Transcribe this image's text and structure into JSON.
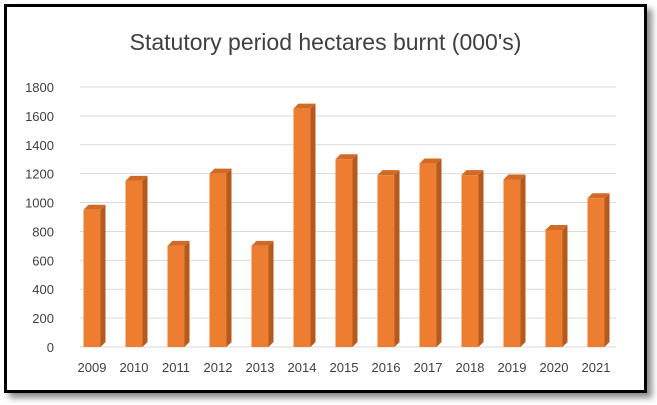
{
  "colors": {
    "bar_front": "#ED7D31",
    "bar_side": "#B55A1E",
    "bar_top": "#D06A25",
    "grid": "#D9D9D9",
    "text": "#404040"
  },
  "chart_data": {
    "type": "bar",
    "title": "Statutory period hectares burnt (000's)",
    "categories": [
      "2009",
      "2010",
      "2011",
      "2012",
      "2013",
      "2014",
      "2015",
      "2016",
      "2017",
      "2018",
      "2019",
      "2020",
      "2021"
    ],
    "values": [
      950,
      1150,
      700,
      1200,
      700,
      1650,
      1300,
      1190,
      1270,
      1190,
      1160,
      810,
      1030
    ],
    "ylim": [
      0,
      1800
    ],
    "yticks": [
      0,
      200,
      400,
      600,
      800,
      1000,
      1200,
      1400,
      1600,
      1800
    ],
    "grid": true,
    "legend": "none",
    "style": "3d-column"
  }
}
